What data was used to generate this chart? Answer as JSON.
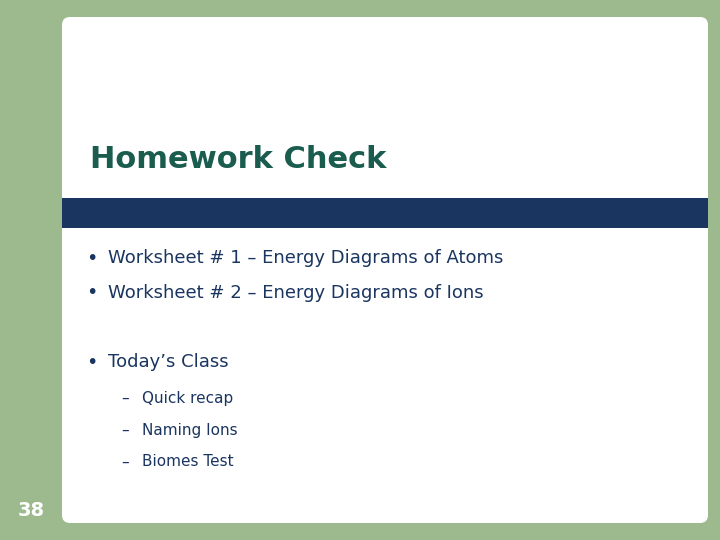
{
  "background_color": "#9dba8f",
  "white_card_color": "#ffffff",
  "dark_blue_bar_color": "#1a3560",
  "title_text": "Homework Check",
  "title_color": "#1a5c4e",
  "title_fontsize": 22,
  "title_bold": true,
  "bullet_color": "#1a3560",
  "bullet_items": [
    "Worksheet # 1 – Energy Diagrams of Atoms",
    "Worksheet # 2 – Energy Diagrams of Ions"
  ],
  "section_title": "Today’s Class",
  "sub_items": [
    "Quick recap",
    "Naming Ions",
    "Biomes Test"
  ],
  "page_number": "38"
}
